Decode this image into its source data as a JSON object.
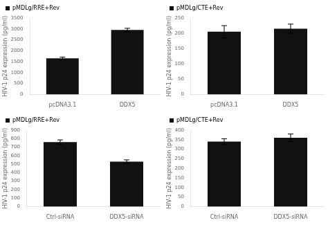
{
  "chart_data": [
    {
      "type": "bar",
      "ylabel": "HIV-1 p24 expression (pg/ml)",
      "categories": [
        "pcDNA3.1",
        "DDX5"
      ],
      "series": [
        {
          "name": "pMDLg/RRE+Rev",
          "color": "#111111",
          "values": [
            1650,
            2950
          ],
          "errors": [
            60,
            80
          ]
        }
      ],
      "ylim": [
        0,
        3500
      ],
      "yticks": [
        0,
        500,
        1000,
        1500,
        2000,
        2500,
        3000,
        3500
      ],
      "legend": "upper left",
      "grid": false
    },
    {
      "type": "bar",
      "ylabel": "HIV-1 p24 expression (pg/ml)",
      "categories": [
        "pcDNA3.1",
        "DDX5"
      ],
      "series": [
        {
          "name": "pMDLg/CTE+Rev",
          "color": "#111111",
          "values": [
            205,
            215
          ],
          "errors": [
            20,
            15
          ]
        }
      ],
      "ylim": [
        0,
        250
      ],
      "yticks": [
        0,
        50,
        100,
        150,
        200,
        250
      ],
      "legend": "upper left",
      "grid": false
    },
    {
      "type": "bar",
      "ylabel": "HIV-1 p24 expression (pg/ml)",
      "categories": [
        "Ctrl-siRNA",
        "DDX5-siRNA"
      ],
      "series": [
        {
          "name": "pMDLg/RRE+Rev",
          "color": "#111111",
          "values": [
            760,
            530
          ],
          "errors": [
            25,
            20
          ]
        }
      ],
      "ylim": [
        0,
        900
      ],
      "yticks": [
        0,
        100,
        200,
        300,
        400,
        500,
        600,
        700,
        800,
        900
      ],
      "legend": "upper left",
      "grid": false
    },
    {
      "type": "bar",
      "ylabel": "HIV-1 p24 expression (pg/ml)",
      "categories": [
        "Ctrl-siRNA",
        "DDX5-siRNA"
      ],
      "series": [
        {
          "name": "pMDLg/CTE+Rev",
          "color": "#111111",
          "values": [
            340,
            360
          ],
          "errors": [
            15,
            20
          ]
        }
      ],
      "ylim": [
        0,
        400
      ],
      "yticks": [
        0,
        50,
        100,
        150,
        200,
        250,
        300,
        350,
        400
      ],
      "legend": "upper left",
      "grid": false
    }
  ]
}
